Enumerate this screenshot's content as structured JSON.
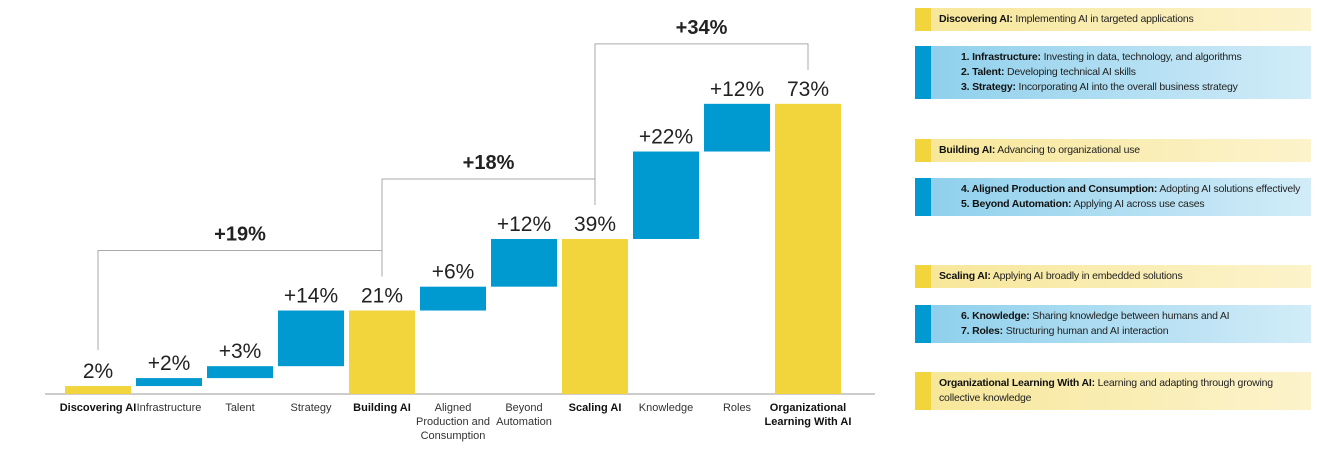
{
  "chart_data": {
    "type": "waterfall",
    "categories": [
      "Discovering AI",
      "Infrastructure",
      "Talent",
      "Strategy",
      "Building AI",
      "Aligned Production and Consumption",
      "Beyond Automation",
      "Scaling AI",
      "Knowledge",
      "Roles",
      "Organizational Learning With AI"
    ],
    "values": [
      2,
      2,
      3,
      14,
      21,
      6,
      12,
      39,
      22,
      12,
      73
    ],
    "value_labels": [
      "2%",
      "+2%",
      "+3%",
      "+14%",
      "21%",
      "+6%",
      "+12%",
      "39%",
      "+22%",
      "+12%",
      "73%"
    ],
    "totals": [
      true,
      false,
      false,
      false,
      true,
      false,
      false,
      true,
      false,
      false,
      true
    ],
    "total_color": "#f2d43d",
    "step_color": "#0099d0",
    "ylim": [
      0,
      80
    ],
    "brackets": [
      "+19%",
      "+18%",
      "+34%"
    ]
  },
  "panel": [
    {
      "kind": "total",
      "items": [
        {
          "title": "Discovering AI:",
          "text": "Implementing AI in targeted applications"
        }
      ]
    },
    {
      "kind": "step",
      "items": [
        {
          "title": "1. Infrastructure:",
          "text": "Investing in data, technology, and algorithms"
        },
        {
          "title": "2. Talent:",
          "text": "Developing technical AI skills"
        },
        {
          "title": "3. Strategy:",
          "text": "Incorporating AI into the overall business strategy"
        }
      ]
    },
    {
      "kind": "total",
      "items": [
        {
          "title": "Building AI:",
          "text": "Advancing to organizational use"
        }
      ]
    },
    {
      "kind": "step",
      "items": [
        {
          "title": "4. Aligned Production and Consumption:",
          "text": "Adopting AI solutions effectively"
        },
        {
          "title": "5. Beyond Automation:",
          "text": "Applying AI across use cases"
        }
      ]
    },
    {
      "kind": "total",
      "items": [
        {
          "title": "Scaling AI:",
          "text": "Applying AI broadly in embedded solutions"
        }
      ]
    },
    {
      "kind": "step",
      "items": [
        {
          "title": "6. Knowledge:",
          "text": "Sharing knowledge between humans and AI"
        },
        {
          "title": "7. Roles:",
          "text": "Structuring human and AI interaction"
        }
      ]
    },
    {
      "kind": "total",
      "items": [
        {
          "title": "Organizational Learning With AI:",
          "text": "Learning and adapting through growing collective knowledge"
        }
      ]
    }
  ]
}
